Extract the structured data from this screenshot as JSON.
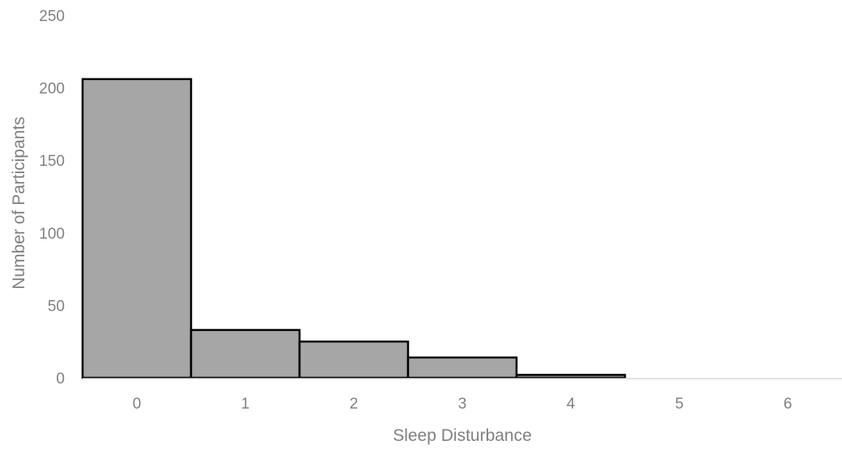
{
  "chart_data": {
    "type": "bar",
    "title": "",
    "xlabel": "Sleep Disturbance",
    "ylabel": "Number of Participants",
    "categories": [
      "0",
      "1",
      "2",
      "3",
      "4",
      "5",
      "6"
    ],
    "values": [
      206,
      33,
      25,
      14,
      2,
      0,
      0
    ],
    "ylim": [
      0,
      250
    ],
    "yticks": [
      0,
      50,
      100,
      150,
      200,
      250
    ],
    "grid": false,
    "legend": "none",
    "bar_fill": "#a6a6a6",
    "bar_stroke": "#000000",
    "axis_color": "#d9d9d9",
    "text_color": "#808080"
  }
}
